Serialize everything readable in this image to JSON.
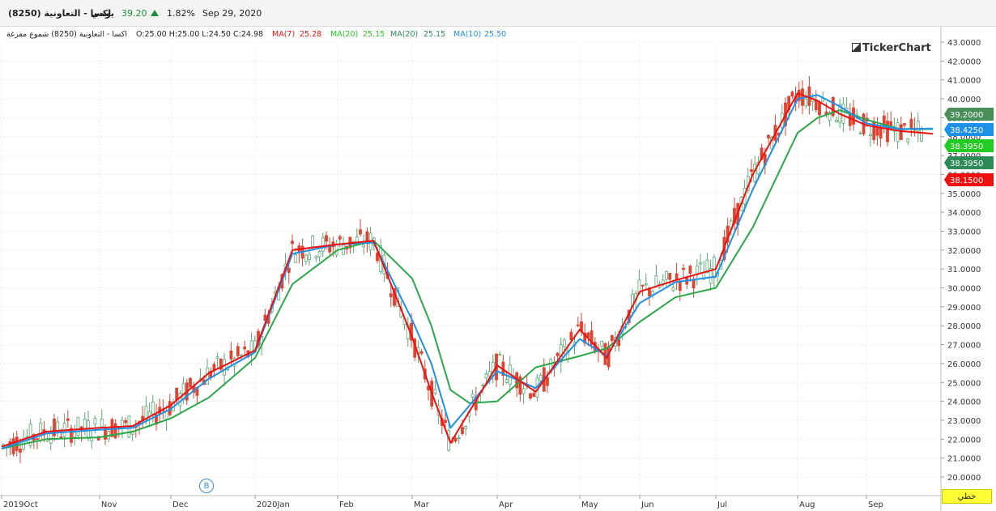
{
  "header": {
    "symbol": "اكسا - التعاونية (8250)",
    "period": "يومي",
    "price": "39.20",
    "change_pct": "1.82%",
    "date": "Sep 29, 2020",
    "up_color": "#1d8f3a"
  },
  "info": {
    "description": "اكسا - التعاونية (8250) شموع مفرغة",
    "ohlc": "O:25.00  H:25.00  L:24.50  C:24.98",
    "ma7_label": "MA(7)",
    "ma7_value": "25.28",
    "ma20a_label": "MA(20)",
    "ma20a_value": "25.15",
    "ma20b_label": "MA(20)",
    "ma20b_value": "25.15",
    "ma10_label": "MA(10)",
    "ma10_value": "25.50"
  },
  "watermark": "TickerChart",
  "marker": "B",
  "scale_mode": "خطي",
  "price_tags": [
    {
      "value": "39.2000",
      "level": 39.2,
      "color": "#4a8f5a"
    },
    {
      "value": "38.4250",
      "level": 38.425,
      "color": "#1e90e8"
    },
    {
      "value": "38.3950",
      "level": 38.395,
      "color": "#22cc22"
    },
    {
      "value": "38.3950",
      "level": 37.5,
      "color": "#2e8b57"
    },
    {
      "value": "38.1500",
      "level": 36.6,
      "color": "#ee1111"
    }
  ],
  "chart_data": {
    "type": "line",
    "title": "",
    "xlabel": "",
    "ylabel": "",
    "ylim": [
      19.5,
      43.2
    ],
    "y_ticks": [
      "20.0000",
      "21.0000",
      "22.0000",
      "23.0000",
      "24.0000",
      "25.0000",
      "26.0000",
      "27.0000",
      "28.0000",
      "29.0000",
      "30.0000",
      "31.0000",
      "32.0000",
      "33.0000",
      "34.0000",
      "35.0000",
      "36.0000",
      "37.0000",
      "38.0000",
      "39.0000",
      "40.0000",
      "41.0000",
      "42.0000",
      "43.0000"
    ],
    "x_ticks": [
      {
        "label": "2019Oct",
        "date": "2019-10-01"
      },
      {
        "label": "Nov",
        "date": "2019-11-01"
      },
      {
        "label": "Dec",
        "date": "2019-12-01"
      },
      {
        "label": "2020Jan",
        "date": "2020-01-01"
      },
      {
        "label": "Feb",
        "date": "2020-02-01"
      },
      {
        "label": "Mar",
        "date": "2020-03-01"
      },
      {
        "label": "Apr",
        "date": "2020-04-01"
      },
      {
        "label": "May",
        "date": "2020-05-01"
      },
      {
        "label": "Jun",
        "date": "2020-06-01"
      },
      {
        "label": "Jul",
        "date": "2020-07-01"
      },
      {
        "label": "Aug",
        "date": "2020-08-01"
      },
      {
        "label": "Sep",
        "date": "2020-09-01"
      }
    ],
    "x_dates": [
      "2019-10-01",
      "2019-10-15",
      "2019-11-01",
      "2019-11-15",
      "2019-12-01",
      "2019-12-15",
      "2020-01-01",
      "2020-01-15",
      "2020-02-01",
      "2020-02-15",
      "2020-03-01",
      "2020-03-08",
      "2020-03-15",
      "2020-03-22",
      "2020-04-01",
      "2020-04-15",
      "2020-05-01",
      "2020-05-15",
      "2020-06-01",
      "2020-06-15",
      "2020-07-01",
      "2020-07-15",
      "2020-08-01",
      "2020-08-10",
      "2020-08-20",
      "2020-09-01",
      "2020-09-15",
      "2020-09-29"
    ],
    "series": [
      {
        "name": "MA(7)",
        "color": "#ee1111",
        "values": [
          21.6,
          22.4,
          22.6,
          22.7,
          23.8,
          25.5,
          26.7,
          32.0,
          32.3,
          32.5,
          27.4,
          24.5,
          21.8,
          23.5,
          25.9,
          24.5,
          27.8,
          26.3,
          29.8,
          30.4,
          31.0,
          36.0,
          40.3,
          39.9,
          39.2,
          38.6,
          38.3,
          38.15
        ]
      },
      {
        "name": "MA(10)",
        "color": "#1e90e8",
        "values": [
          21.5,
          22.3,
          22.5,
          22.6,
          23.6,
          25.2,
          26.6,
          31.8,
          32.3,
          32.4,
          28.3,
          26.0,
          22.6,
          23.8,
          25.6,
          24.7,
          27.3,
          26.4,
          29.2,
          30.3,
          30.6,
          35.2,
          40.0,
          40.2,
          39.6,
          38.7,
          38.4,
          38.43
        ]
      },
      {
        "name": "MA(20)",
        "color": "#2aa84a",
        "values": [
          21.5,
          22.0,
          22.1,
          22.4,
          23.1,
          24.2,
          26.3,
          30.2,
          32.0,
          32.5,
          30.5,
          28.0,
          24.6,
          23.9,
          24.0,
          25.8,
          26.4,
          26.8,
          28.2,
          29.5,
          30.0,
          33.2,
          38.2,
          39.0,
          39.4,
          38.9,
          38.4,
          38.4
        ]
      }
    ],
    "grid": true,
    "y_axis_side": "right"
  }
}
